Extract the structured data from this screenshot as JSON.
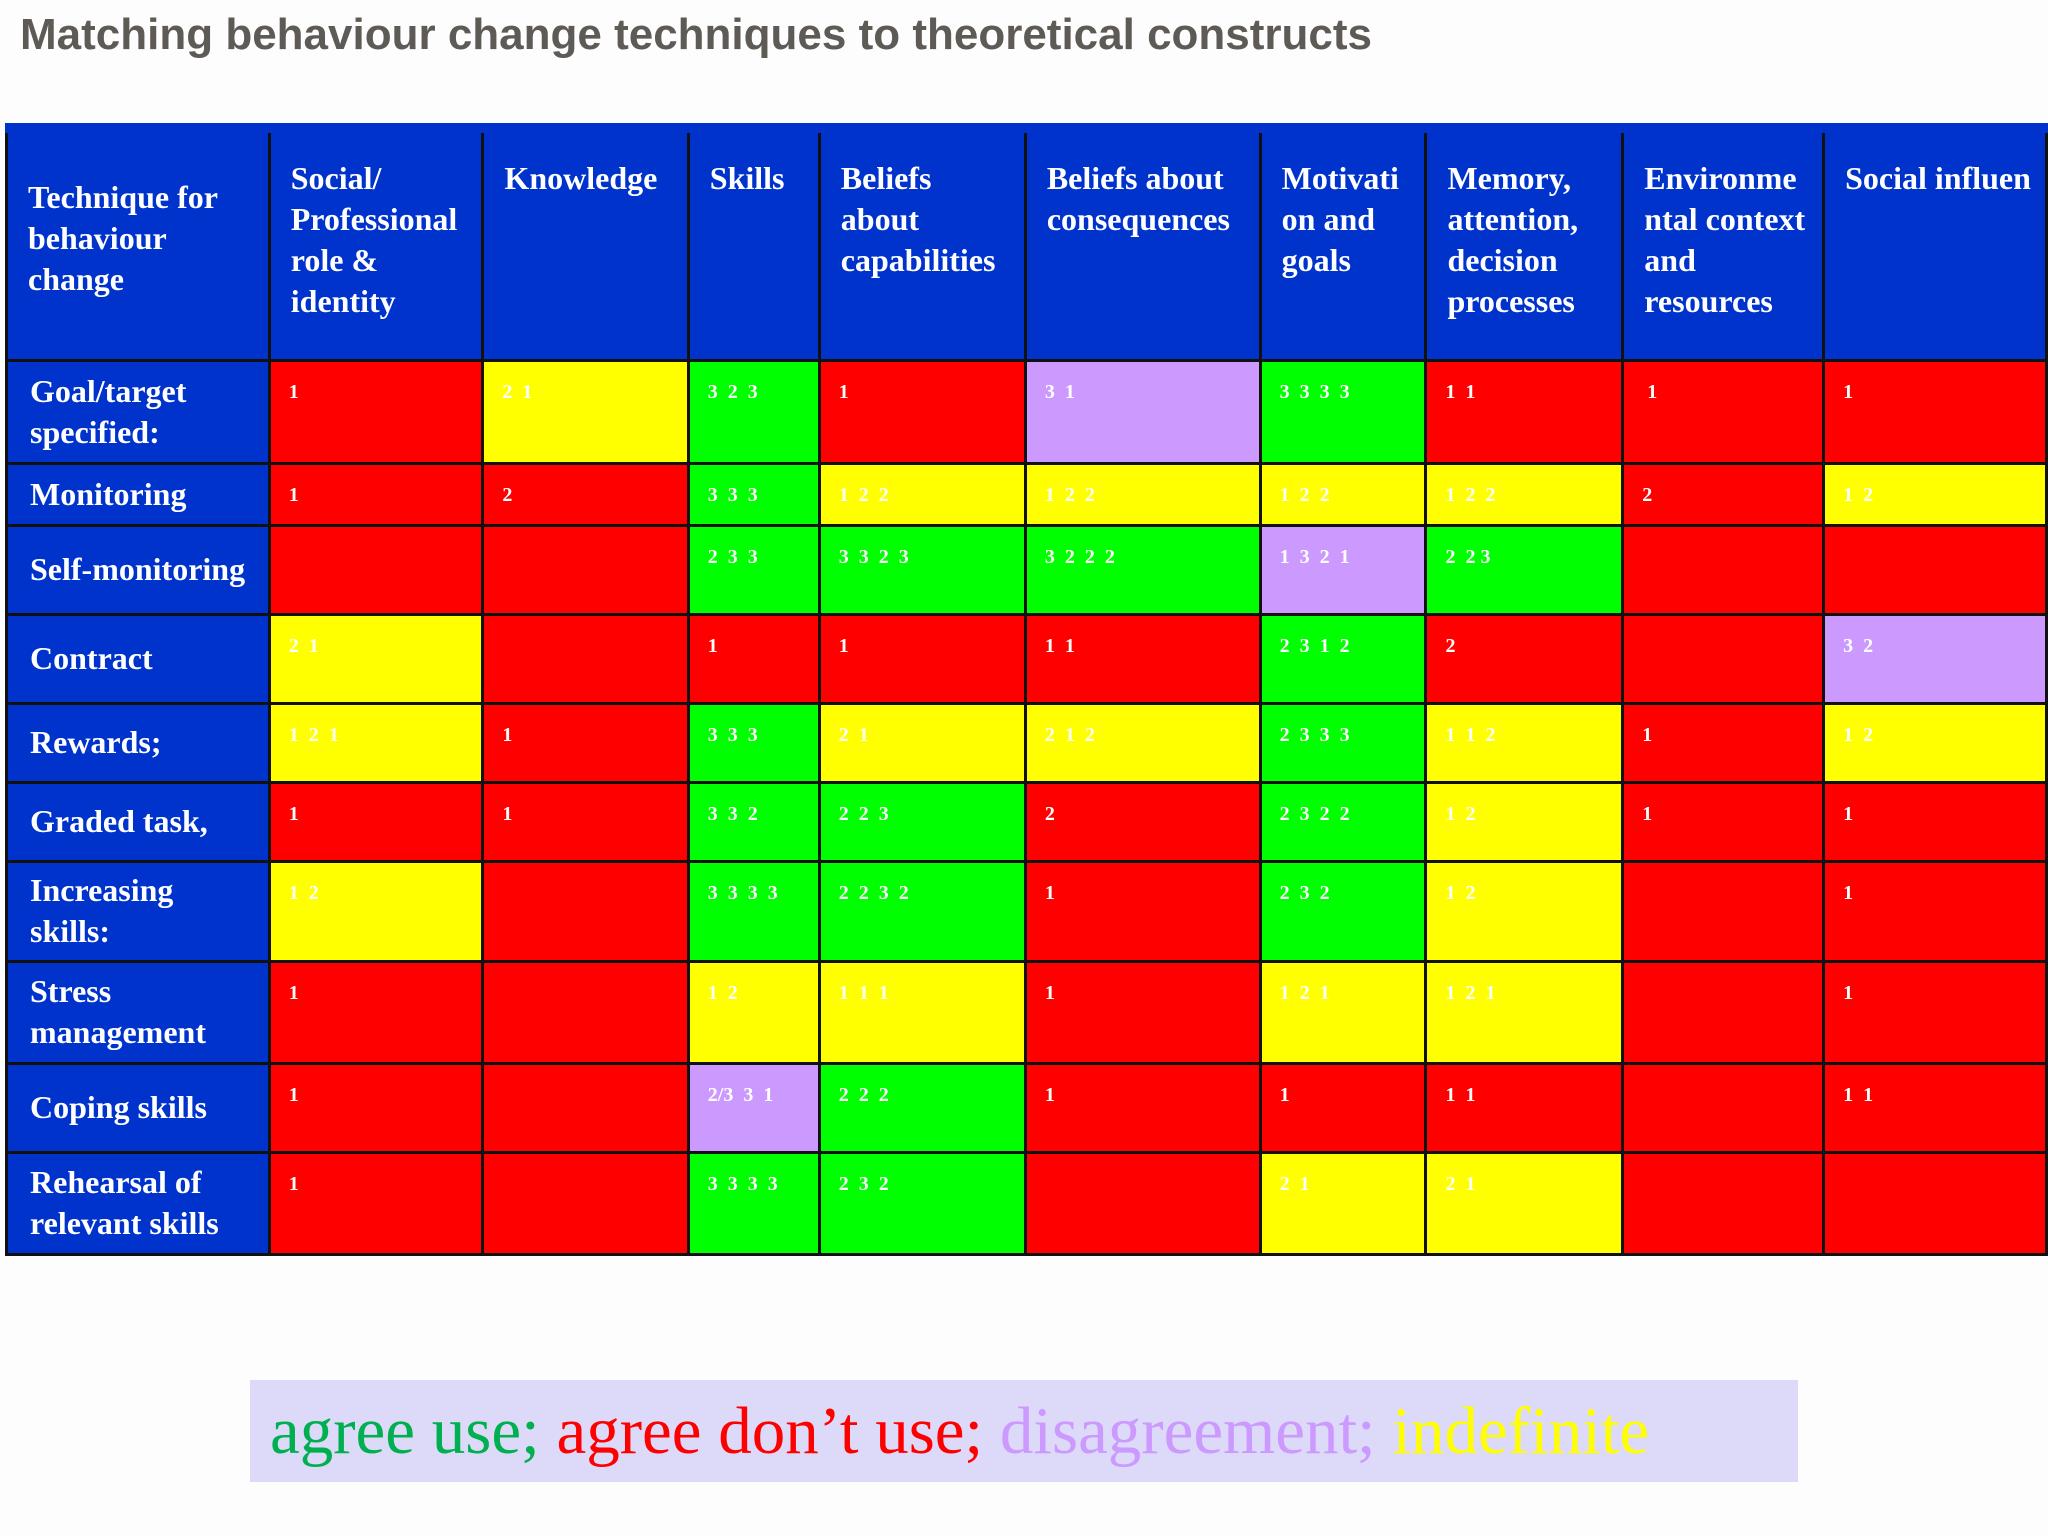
{
  "title": "Matching behaviour change techniques to theoretical constructs",
  "colors": {
    "header": "#0033cc",
    "agree_use": "#00ff00",
    "agree_dont_use": "#ff0000",
    "disagreement": "#cc99ff",
    "indefinite": "#ffff00"
  },
  "table": {
    "corner": "Technique for behaviour change",
    "columns": [
      "Social/ Professional role & identity",
      "Knowledge",
      "Skills",
      "Beliefs about capabilities",
      "Beliefs about consequences",
      "Motivati on and goals",
      "Memory, attention, decision processes",
      "Environme ntal context and resources",
      "Social influen"
    ],
    "rows": [
      {
        "label": "Goal/target specified:",
        "cells": [
          {
            "c": "red",
            "t": "1"
          },
          {
            "c": "yellow",
            "t": "2  1"
          },
          {
            "c": "green",
            "t": "3  2  3"
          },
          {
            "c": "red",
            "t": "1"
          },
          {
            "c": "purple",
            "t": "3  1"
          },
          {
            "c": "green",
            "t": "3  3  3  3"
          },
          {
            "c": "red",
            "t": "1  1"
          },
          {
            "c": "red",
            "t": " 1"
          },
          {
            "c": "red",
            "t": "1"
          }
        ]
      },
      {
        "label": "Monitoring",
        "cells": [
          {
            "c": "red",
            "t": "1"
          },
          {
            "c": "red",
            "t": "2"
          },
          {
            "c": "green",
            "t": "3  3  3"
          },
          {
            "c": "yellow",
            "t": "1  2  2"
          },
          {
            "c": "yellow",
            "t": "1  2  2"
          },
          {
            "c": "yellow",
            "t": "1  2  2"
          },
          {
            "c": "yellow",
            "t": "1  2  2"
          },
          {
            "c": "red",
            "t": "2"
          },
          {
            "c": "yellow",
            "t": "1  2"
          }
        ]
      },
      {
        "label": "Self-monitoring",
        "cells": [
          {
            "c": "red",
            "t": ""
          },
          {
            "c": "red",
            "t": ""
          },
          {
            "c": "green",
            "t": "2  3  3"
          },
          {
            "c": "green",
            "t": "3  3  2  3"
          },
          {
            "c": "green",
            "t": "3  2  2  2"
          },
          {
            "c": "purple",
            "t": "1  3  2  1"
          },
          {
            "c": "green",
            "t": "2  2 3"
          },
          {
            "c": "red",
            "t": ""
          },
          {
            "c": "red",
            "t": ""
          }
        ]
      },
      {
        "label": "Contract",
        "cells": [
          {
            "c": "yellow",
            "t": "2  1"
          },
          {
            "c": "red",
            "t": ""
          },
          {
            "c": "red",
            "t": "1"
          },
          {
            "c": "red",
            "t": "1"
          },
          {
            "c": "red",
            "t": "1  1"
          },
          {
            "c": "green",
            "t": "2  3  1  2"
          },
          {
            "c": "red",
            "t": "2"
          },
          {
            "c": "red",
            "t": ""
          },
          {
            "c": "purple",
            "t": "3  2"
          }
        ]
      },
      {
        "label": "Rewards;",
        "cells": [
          {
            "c": "yellow",
            "t": "1  2  1"
          },
          {
            "c": "red",
            "t": "1"
          },
          {
            "c": "green",
            "t": "3  3  3"
          },
          {
            "c": "yellow",
            "t": "2  1"
          },
          {
            "c": "yellow",
            "t": "2  1  2"
          },
          {
            "c": "green",
            "t": "2  3  3  3"
          },
          {
            "c": "yellow",
            "t": "1  1  2"
          },
          {
            "c": "red",
            "t": "1"
          },
          {
            "c": "yellow",
            "t": "1  2"
          }
        ]
      },
      {
        "label": "Graded task,",
        "cells": [
          {
            "c": "red",
            "t": "1"
          },
          {
            "c": "red",
            "t": "1"
          },
          {
            "c": "green",
            "t": "3  3  2"
          },
          {
            "c": "green",
            "t": "2  2  3"
          },
          {
            "c": "red",
            "t": "2"
          },
          {
            "c": "green",
            "t": "2  3  2  2"
          },
          {
            "c": "yellow",
            "t": "1  2"
          },
          {
            "c": "red",
            "t": "1"
          },
          {
            "c": "red",
            "t": "1"
          }
        ]
      },
      {
        "label": "Increasing skills:",
        "cells": [
          {
            "c": "yellow",
            "t": "1  2"
          },
          {
            "c": "red",
            "t": ""
          },
          {
            "c": "green",
            "t": "3  3  3  3"
          },
          {
            "c": "green",
            "t": "2  2  3  2"
          },
          {
            "c": "red",
            "t": "1"
          },
          {
            "c": "green",
            "t": "2  3  2"
          },
          {
            "c": "yellow",
            "t": "1  2"
          },
          {
            "c": "red",
            "t": ""
          },
          {
            "c": "red",
            "t": "1"
          }
        ]
      },
      {
        "label": "Stress management",
        "cells": [
          {
            "c": "red",
            "t": "1"
          },
          {
            "c": "red",
            "t": ""
          },
          {
            "c": "yellow",
            "t": "1  2"
          },
          {
            "c": "yellow",
            "t": "1  1  1"
          },
          {
            "c": "red",
            "t": "1"
          },
          {
            "c": "yellow",
            "t": "1  2  1"
          },
          {
            "c": "yellow",
            "t": "1  2  1"
          },
          {
            "c": "red",
            "t": ""
          },
          {
            "c": "red",
            "t": "1"
          }
        ]
      },
      {
        "label": "Coping skills",
        "cells": [
          {
            "c": "red",
            "t": "1"
          },
          {
            "c": "red",
            "t": ""
          },
          {
            "c": "purple",
            "t": "2/3  3  1"
          },
          {
            "c": "green",
            "t": "2  2  2"
          },
          {
            "c": "red",
            "t": "1"
          },
          {
            "c": "red",
            "t": "1"
          },
          {
            "c": "red",
            "t": "1  1"
          },
          {
            "c": "red",
            "t": ""
          },
          {
            "c": "red",
            "t": "1  1"
          }
        ]
      },
      {
        "label": "Rehearsal of relevant skills",
        "cells": [
          {
            "c": "red",
            "t": "1"
          },
          {
            "c": "red",
            "t": ""
          },
          {
            "c": "green",
            "t": "3  3  3  3"
          },
          {
            "c": "green",
            "t": "2  3  2"
          },
          {
            "c": "red",
            "t": ""
          },
          {
            "c": "yellow",
            "t": "2  1"
          },
          {
            "c": "yellow",
            "t": "2  1"
          },
          {
            "c": "red",
            "t": ""
          },
          {
            "c": "red",
            "t": ""
          }
        ]
      }
    ]
  },
  "legend": {
    "agree_use": "agree use;",
    "agree_dont_use": "agree don’t use;",
    "disagreement": "disagreement;",
    "indefinite": "indefinite"
  }
}
